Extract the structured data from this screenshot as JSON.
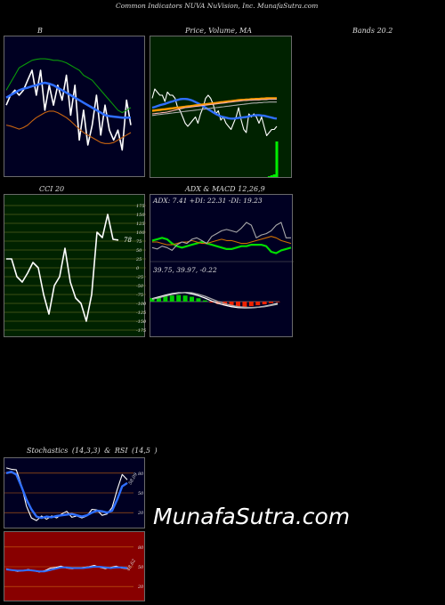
{
  "header": {
    "title": "Common  Indicators NUVA NuVision,  Inc. MunafaSutra.com"
  },
  "brand": "MunafaSutra.com",
  "colors": {
    "bg": "#000000",
    "panel_blue": "#000022",
    "panel_green": "#002200",
    "panel_red": "#880000"
  },
  "chart_data": [
    {
      "id": "bollinger",
      "type": "line",
      "title": "B",
      "series": [
        {
          "color": "#ffffff",
          "values": [
            78,
            80,
            81,
            80,
            81,
            83,
            85,
            80,
            85,
            77,
            82,
            78,
            82,
            79,
            84,
            76,
            82,
            71,
            77,
            70,
            74,
            80,
            72,
            78,
            73,
            71,
            73,
            69,
            79,
            74
          ]
        },
        {
          "color": "#2f6fff",
          "values": [
            79.5,
            80,
            80.5,
            81,
            81.3,
            81.5,
            81.8,
            82,
            82.3,
            82.5,
            82.3,
            82,
            81.5,
            81,
            80.5,
            80,
            79.5,
            79,
            78.5,
            78,
            77.5,
            77,
            76.5,
            76,
            75.8,
            75.7,
            75.6,
            75.5,
            75.5,
            75.5
          ]
        },
        {
          "color": "#0a9a0a",
          "values": [
            81,
            82.5,
            84,
            85.5,
            86,
            86.5,
            87,
            87.2,
            87.3,
            87.3,
            87.2,
            87,
            87,
            86.8,
            86.5,
            86,
            85.5,
            85,
            84,
            83.5,
            83,
            82,
            81,
            80,
            79,
            78,
            77,
            76.5,
            77,
            77.5
          ]
        },
        {
          "color": "#c86410",
          "values": [
            74,
            73.8,
            73.5,
            73.2,
            73.5,
            74,
            74.8,
            75.5,
            76,
            76.5,
            76.8,
            76.8,
            76.5,
            76,
            75.5,
            74.8,
            74,
            73.2,
            72.5,
            72,
            71.5,
            71,
            70.5,
            70.3,
            70.3,
            70.5,
            71,
            71.5,
            72,
            72.5
          ]
        }
      ]
    },
    {
      "id": "price_ma",
      "type": "line",
      "title": "Price,  Volume,  MA",
      "series": [
        {
          "color": "#ffffff",
          "values": [
            78,
            81,
            80,
            79,
            79,
            77,
            80,
            79,
            79,
            78,
            75,
            74,
            72,
            70,
            69,
            70,
            71,
            72,
            70,
            73,
            75,
            78,
            79,
            78,
            76,
            73,
            74,
            71,
            72,
            70,
            69,
            68,
            70,
            72,
            75,
            71,
            68,
            67,
            73,
            72,
            73,
            72,
            70,
            72,
            69,
            66,
            67,
            68,
            68,
            69
          ]
        },
        {
          "color": "#2f6fff",
          "values": [
            75,
            75.2,
            75.5,
            75.8,
            76,
            76.2,
            76.5,
            76.8,
            77,
            77.3,
            77.5,
            77.7,
            77.8,
            77.8,
            77.7,
            77.5,
            77.2,
            76.8,
            76.4,
            76,
            75.5,
            75,
            74.5,
            74,
            73.5,
            73,
            72.6,
            72.2,
            72,
            71.8,
            71.6,
            71.5,
            71.5,
            71.6,
            71.7,
            71.8,
            71.9,
            72,
            72.2,
            72.4,
            72.5,
            72.6,
            72.6,
            72.5,
            72.4,
            72.2,
            72,
            71.8,
            71.6,
            71.5
          ]
        },
        {
          "color": "#ff9a00",
          "values": [
            74,
            74.1,
            74.2,
            74.3,
            74.4,
            74.5,
            74.6,
            74.7,
            74.8,
            74.9,
            75,
            75.1,
            75.2,
            75.3,
            75.4,
            75.5,
            75.6,
            75.7,
            75.8,
            75.9,
            76,
            76.1,
            76.2,
            76.3,
            76.4,
            76.5,
            76.6,
            76.7,
            76.8,
            76.9,
            77,
            77.1,
            77.2,
            77.3,
            77.4,
            77.5,
            77.5,
            77.6,
            77.6,
            77.7,
            77.7,
            77.8,
            77.8,
            77.9,
            77.9,
            78,
            78,
            78,
            78,
            78
          ]
        },
        {
          "color": "#ffb0b0",
          "values": [
            73,
            73.1,
            73.2,
            73.3,
            73.4,
            73.5,
            73.6,
            73.8,
            74,
            74.2,
            74.4,
            74.6,
            74.8,
            75,
            75.1,
            75.2,
            75.3,
            75.4,
            75.5,
            75.6,
            75.7,
            75.8,
            75.9,
            76,
            76.1,
            76.2,
            76.3,
            76.4,
            76.5,
            76.6,
            76.7,
            76.8,
            76.9,
            77,
            77.1,
            77.2,
            77.3,
            77.3,
            77.4,
            77.4,
            77.5,
            77.5,
            77.5,
            77.6,
            77.6,
            77.6,
            77.7,
            77.7,
            77.7,
            77.7
          ]
        },
        {
          "color": "#aaaaaa",
          "values": [
            72.5,
            72.6,
            72.7,
            72.8,
            72.9,
            73,
            73.1,
            73.2,
            73.3,
            73.4,
            73.5,
            73.6,
            73.7,
            73.8,
            73.9,
            74,
            74.1,
            74.2,
            74.3,
            74.4,
            74.5,
            74.6,
            74.7,
            74.8,
            74.9,
            75,
            75.1,
            75.2,
            75.3,
            75.4,
            75.5,
            75.6,
            75.7,
            75.8,
            75.9,
            76,
            76.1,
            76.2,
            76.3,
            76.4,
            76.5,
            76.5,
            76.6,
            76.6,
            76.7,
            76.7,
            76.8,
            76.8,
            76.8,
            76.8
          ]
        }
      ],
      "volume": [
        0,
        0,
        0,
        0,
        0,
        0,
        0,
        0,
        0,
        0,
        0,
        0,
        0,
        0,
        0,
        0,
        0,
        0,
        0,
        0,
        0,
        0,
        0,
        0,
        0,
        0,
        0,
        0,
        0,
        0,
        0,
        0,
        0,
        0,
        0,
        0,
        0,
        0,
        0,
        0,
        0,
        0,
        0,
        0,
        0,
        0,
        1,
        2,
        3,
        40
      ],
      "volume_color": "#00ee00"
    },
    {
      "id": "bands",
      "type": "text",
      "title": "Bands 20.2"
    },
    {
      "id": "cci",
      "type": "line",
      "title": "CCI 20",
      "ylim": [
        -175,
        175
      ],
      "y_ticks": [
        "175",
        "150",
        "125",
        "100",
        "75",
        "50",
        "25",
        "0",
        "-25",
        "-50",
        "-75",
        "-100",
        "-125",
        "-150",
        "-175"
      ],
      "current_label": "78",
      "series": [
        {
          "color": "#ffffff",
          "values": [
            25,
            25,
            -25,
            -40,
            -15,
            15,
            0,
            -75,
            -130,
            -50,
            -25,
            55,
            -40,
            -85,
            -100,
            -150,
            -75,
            100,
            85,
            150,
            80,
            78
          ]
        }
      ]
    },
    {
      "id": "adx_macd",
      "type": "line",
      "title": "ADX  & MACD 12,26,9",
      "adx_label": "ADX: 7.41  +DI: 22.31  -DI: 19.23",
      "macd_label": "39.75,  39.97,  -0.22",
      "adx_series": [
        {
          "color": "#00dd00",
          "values": [
            20,
            21,
            22,
            21,
            18,
            16,
            15,
            16,
            17,
            18,
            19,
            18,
            17,
            16,
            15,
            14,
            14,
            15,
            16,
            16,
            17,
            17,
            17,
            16,
            12,
            11,
            13,
            14,
            15
          ]
        },
        {
          "color": "#d07000",
          "values": [
            19,
            19,
            18,
            17,
            17,
            18,
            19,
            19,
            20,
            19,
            18,
            18,
            19,
            20,
            21,
            20,
            20,
            19,
            18,
            18,
            19,
            20,
            21,
            22,
            23,
            22,
            20,
            19,
            18
          ]
        },
        {
          "color": "#aaaaaa",
          "values": [
            15,
            14,
            16,
            15,
            13,
            17,
            19,
            18,
            21,
            22,
            20,
            18,
            23,
            25,
            27,
            28,
            27,
            26,
            29,
            33,
            31,
            22,
            24,
            25,
            27,
            31,
            33,
            22,
            22
          ]
        }
      ],
      "macd_series": [
        {
          "color": "#ffffff",
          "values": [
            1.0,
            1.6,
            2.2,
            2.7,
            3.0,
            3.0,
            2.6,
            2.0,
            1.2,
            0.2,
            -0.6,
            -1.2,
            -1.7,
            -2.0,
            -2.1,
            -2.1,
            -1.9,
            -1.6,
            -1.1,
            -0.6
          ]
        },
        {
          "color": "#aaaaaa",
          "values": [
            0.8,
            1.3,
            1.9,
            2.4,
            2.8,
            3.1,
            3.0,
            2.5,
            1.8,
            0.9,
            0.0,
            -0.7,
            -1.3,
            -1.7,
            -1.9,
            -2.0,
            -1.9,
            -1.7,
            -1.3,
            -0.9
          ]
        }
      ],
      "histogram": [
        1.2,
        1.6,
        1.9,
        2.0,
        2.2,
        2.0,
        1.6,
        1.1,
        0.4,
        -0.3,
        -0.8,
        -1.2,
        -1.6,
        -1.9,
        -1.8,
        -1.5,
        -1.2,
        -0.9,
        -0.5,
        -0.2
      ]
    },
    {
      "id": "stochastics_title",
      "type": "text",
      "title": "Stochastics (14,3,3) & RSI (14,5 )"
    },
    {
      "id": "stochastics",
      "type": "line",
      "ylim": [
        0,
        100
      ],
      "y_ticks": [
        "80",
        "50",
        "20"
      ],
      "current_label": "58.09",
      "series": [
        {
          "color": "#ffffff",
          "values": [
            88,
            86,
            85,
            62,
            30,
            12,
            8,
            15,
            10,
            15,
            12,
            18,
            22,
            13,
            15,
            12,
            15,
            25,
            24,
            16,
            18,
            28,
            55,
            78,
            70
          ]
        },
        {
          "color": "#2f6fff",
          "values": [
            80,
            82,
            78,
            60,
            40,
            25,
            14,
            12,
            14,
            13,
            15,
            16,
            17,
            18,
            16,
            14,
            16,
            20,
            23,
            22,
            20,
            23,
            40,
            60,
            65
          ]
        }
      ]
    },
    {
      "id": "rsi",
      "type": "line",
      "ylim": [
        0,
        100
      ],
      "y_ticks": [
        "80",
        "50",
        "20"
      ],
      "current_label": "48.62",
      "series": [
        {
          "color": "#ffffff",
          "values": [
            47,
            45,
            43,
            44,
            46,
            44,
            42,
            44,
            48,
            49,
            51,
            48,
            47,
            48,
            49,
            50,
            52,
            49,
            47,
            49,
            51,
            48,
            47
          ]
        },
        {
          "color": "#2f6fff",
          "values": [
            46,
            45,
            44,
            44,
            45,
            44,
            43,
            43,
            45,
            47,
            49,
            49,
            48,
            48,
            48,
            49,
            50,
            50,
            49,
            48,
            49,
            49,
            48
          ]
        }
      ]
    }
  ]
}
